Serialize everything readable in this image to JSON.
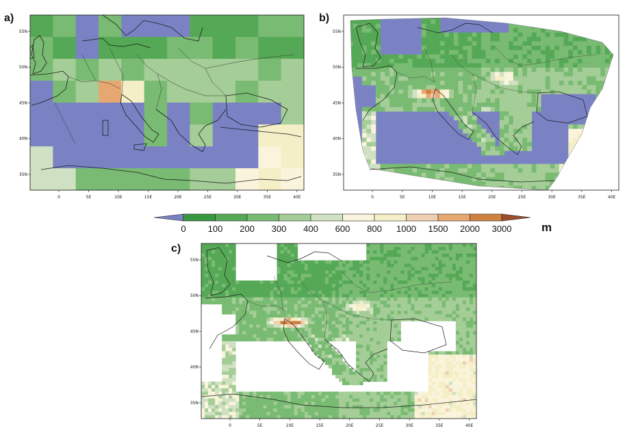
{
  "panels": [
    {
      "label": "a)",
      "type": "coarse"
    },
    {
      "label": "b)",
      "type": "rotated"
    },
    {
      "label": "c)",
      "type": "fine"
    }
  ],
  "axes": {
    "lon_ticks": [
      "0",
      "5E",
      "10E",
      "15E",
      "20E",
      "25E",
      "30E",
      "35E",
      "40E"
    ],
    "lat_ticks": [
      "55N",
      "50N",
      "45N",
      "40N",
      "35N"
    ]
  },
  "colorbar": {
    "labels": [
      "0",
      "100",
      "200",
      "300",
      "400",
      "600",
      "800",
      "1000",
      "1500",
      "2000",
      "3000"
    ],
    "unit": "m",
    "colors": {
      "sea": "#7a82c4",
      "c1": "#36993f",
      "c2": "#55a956",
      "c3": "#79bb72",
      "c4": "#a4cd97",
      "c5": "#cfe1c2",
      "c6": "#fbf4dc",
      "c7": "#f4efc6",
      "c8": "#eecfb2",
      "c9": "#e6a870",
      "c10": "#cf8142",
      "top": "#9b4e2a"
    }
  }
}
